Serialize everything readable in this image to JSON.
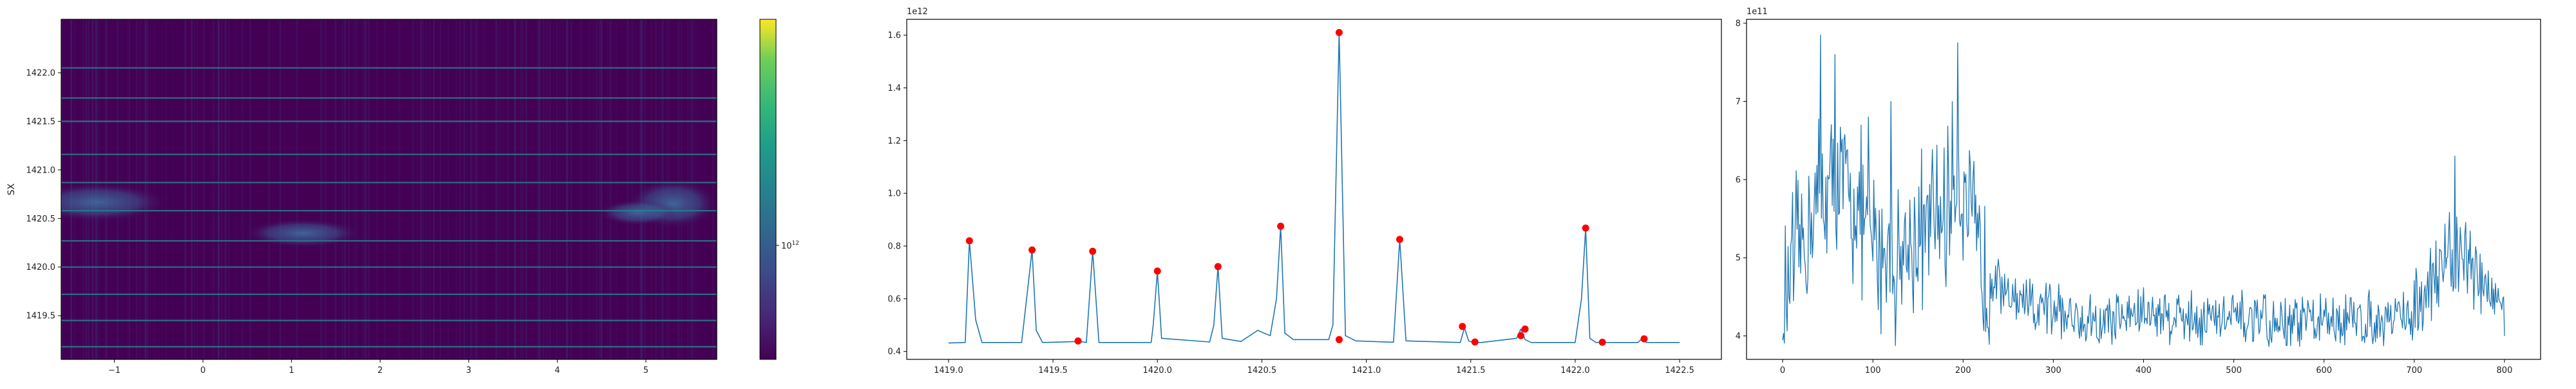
{
  "chart_data": [
    {
      "type": "heatmap",
      "ylabel": "SX",
      "xlabel": "",
      "xlim": [
        -1.6,
        5.8
      ],
      "ylim": [
        1419.05,
        1422.55
      ],
      "xticks": [
        -1,
        0,
        1,
        2,
        3,
        4,
        5
      ],
      "xtick_labels": [
        "−1",
        "0",
        "1",
        "2",
        "3",
        "4",
        "5"
      ],
      "yticks": [
        1419.5,
        1420.0,
        1420.5,
        1421.0,
        1421.5,
        1422.0
      ],
      "ytick_labels": [
        "1419.5",
        "1420.0",
        "1420.5",
        "1421.0",
        "1421.5",
        "1422.0"
      ],
      "colormap": "viridis",
      "colorbar": {
        "scale": "log",
        "tick_label": "10",
        "tick_exponent": "12",
        "tick_value": 1000000000000.0
      },
      "horizontal_lines_y": [
        1419.18,
        1419.45,
        1419.72,
        1420.0,
        1420.27,
        1420.58,
        1420.87,
        1421.16,
        1421.5,
        1421.74,
        1422.05
      ],
      "grid": false
    },
    {
      "type": "line",
      "title": "",
      "xlabel": "",
      "ylabel": "",
      "offset_label": "1e12",
      "xlim": [
        1418.8,
        1422.7
      ],
      "ylim": [
        0.37,
        1.66
      ],
      "xticks": [
        1419.0,
        1419.5,
        1420.0,
        1420.5,
        1421.0,
        1421.5,
        1422.0,
        1422.5
      ],
      "xtick_labels": [
        "1419.0",
        "1419.5",
        "1420.0",
        "1420.5",
        "1421.0",
        "1421.5",
        "1422.0",
        "1422.5"
      ],
      "yticks": [
        0.4,
        0.6,
        0.8,
        1.0,
        1.2,
        1.4,
        1.6
      ],
      "ytick_labels": [
        "0.4",
        "0.6",
        "0.8",
        "1.0",
        "1.2",
        "1.4",
        "1.6"
      ],
      "series": [
        {
          "color": "#1f77b4",
          "x": [
            1419.0,
            1419.08,
            1419.1,
            1419.13,
            1419.16,
            1419.35,
            1419.4,
            1419.42,
            1419.45,
            1419.63,
            1419.66,
            1419.69,
            1419.72,
            1419.97,
            1419.98,
            1420.0,
            1420.02,
            1420.25,
            1420.27,
            1420.29,
            1420.31,
            1420.4,
            1420.48,
            1420.54,
            1420.57,
            1420.59,
            1420.61,
            1420.65,
            1420.82,
            1420.84,
            1420.87,
            1420.9,
            1420.95,
            1421.13,
            1421.16,
            1421.19,
            1421.45,
            1421.47,
            1421.49,
            1421.51,
            1421.55,
            1421.72,
            1421.74,
            1421.76,
            1421.79,
            1421.82,
            1422.0,
            1422.03,
            1422.05,
            1422.07,
            1422.1,
            1422.3,
            1422.32,
            1422.34,
            1422.36,
            1422.5
          ],
          "values": [
            0.432,
            0.434,
            0.82,
            0.52,
            0.434,
            0.434,
            0.785,
            0.48,
            0.434,
            0.438,
            0.434,
            0.78,
            0.434,
            0.434,
            0.5,
            0.705,
            0.45,
            0.436,
            0.5,
            0.722,
            0.45,
            0.438,
            0.48,
            0.46,
            0.6,
            0.875,
            0.47,
            0.445,
            0.445,
            0.5,
            1.61,
            0.46,
            0.44,
            0.435,
            0.825,
            0.44,
            0.434,
            0.49,
            0.44,
            0.434,
            0.434,
            0.45,
            0.485,
            0.445,
            0.434,
            0.434,
            0.434,
            0.6,
            0.868,
            0.45,
            0.434,
            0.434,
            0.448,
            0.434,
            0.434,
            0.434
          ]
        }
      ],
      "markers": {
        "color": "#ff0000",
        "x": [
          1419.1,
          1419.4,
          1419.62,
          1419.69,
          1420.0,
          1420.29,
          1420.59,
          1420.87,
          1420.87,
          1421.16,
          1421.46,
          1421.52,
          1421.74,
          1421.76,
          1422.05,
          1422.13,
          1422.33
        ],
        "y": [
          0.82,
          0.785,
          0.44,
          0.78,
          0.705,
          0.722,
          0.875,
          0.445,
          1.61,
          0.825,
          0.495,
          0.436,
          0.46,
          0.485,
          0.868,
          0.435,
          0.448
        ]
      },
      "grid": false
    },
    {
      "type": "line",
      "title": "",
      "xlabel": "",
      "ylabel": "",
      "offset_label": "1e11",
      "xlim": [
        -40,
        840
      ],
      "ylim": [
        3.7,
        8.05
      ],
      "xticks": [
        0,
        100,
        200,
        300,
        400,
        500,
        600,
        700,
        800
      ],
      "xtick_labels": [
        "0",
        "100",
        "200",
        "300",
        "400",
        "500",
        "600",
        "700",
        "800"
      ],
      "yticks": [
        4,
        5,
        6,
        7,
        8
      ],
      "ytick_labels": [
        "4",
        "5",
        "6",
        "7",
        "8"
      ],
      "series": [
        {
          "color": "#1f77b4",
          "generated_points": 800,
          "keypoints": {
            "x": [
              0,
              40,
              70,
              100,
              130,
              180,
              195,
              220,
              260,
              300,
              350,
              400,
              450,
              500,
              550,
              600,
              650,
              700,
              730,
              760,
              780,
              800
            ],
            "y": [
              4.4,
              5.8,
              5.9,
              5.2,
              5.0,
              5.6,
              6.1,
              4.8,
              4.4,
              4.3,
              4.2,
              4.3,
              4.25,
              4.2,
              4.15,
              4.2,
              4.2,
              4.3,
              5.0,
              4.9,
              4.6,
              4.4
            ]
          },
          "extreme_points": {
            "x": [
              42,
              58,
              95,
              120,
              194,
              745,
              800
            ],
            "y": [
              7.85,
              7.6,
              6.8,
              7.0,
              7.75,
              6.3,
              4.0
            ]
          }
        }
      ],
      "grid": false
    }
  ]
}
